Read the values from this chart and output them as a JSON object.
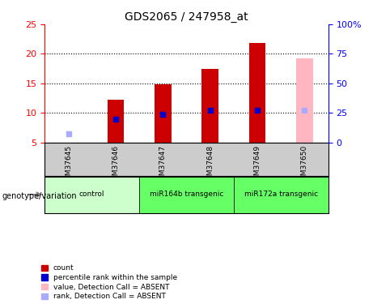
{
  "title": "GDS2065 / 247958_at",
  "samples": [
    "GSM37645",
    "GSM37646",
    "GSM37647",
    "GSM37648",
    "GSM37649",
    "GSM37650"
  ],
  "count_values": [
    null,
    12.2,
    14.9,
    17.5,
    21.8,
    null
  ],
  "rank_values": [
    null,
    9.0,
    9.8,
    10.5,
    10.5,
    null
  ],
  "absent_value": [
    null,
    null,
    null,
    null,
    null,
    19.3
  ],
  "absent_rank": [
    6.5,
    null,
    null,
    null,
    null,
    10.5
  ],
  "ylim_left": [
    5,
    25
  ],
  "ylim_right": [
    0,
    100
  ],
  "yticks_left": [
    5,
    10,
    15,
    20,
    25
  ],
  "yticks_right": [
    0,
    25,
    50,
    75,
    100
  ],
  "ytick_labels_right": [
    "0",
    "25",
    "50",
    "75",
    "100%"
  ],
  "bar_color_red": "#CC0000",
  "bar_color_pink": "#FFB6C1",
  "dot_color_blue": "#0000CC",
  "dot_color_lightblue": "#AAAAFF",
  "group_bg_color": "#CCCCCC",
  "control_group_color": "#CCFFCC",
  "mir164b_group_color": "#66FF66",
  "mir172a_group_color": "#66FF66",
  "groups_def": [
    {
      "label": "control",
      "start": 0,
      "end": 1
    },
    {
      "label": "miR164b transgenic",
      "start": 2,
      "end": 3
    },
    {
      "label": "miR172a transgenic",
      "start": 4,
      "end": 5
    }
  ],
  "groups_colors": [
    "#CCFFCC",
    "#66FF66",
    "#66FF66"
  ],
  "legend_labels": [
    "count",
    "percentile rank within the sample",
    "value, Detection Call = ABSENT",
    "rank, Detection Call = ABSENT"
  ],
  "legend_colors": [
    "#CC0000",
    "#0000CC",
    "#FFB6C1",
    "#AAAAFF"
  ]
}
